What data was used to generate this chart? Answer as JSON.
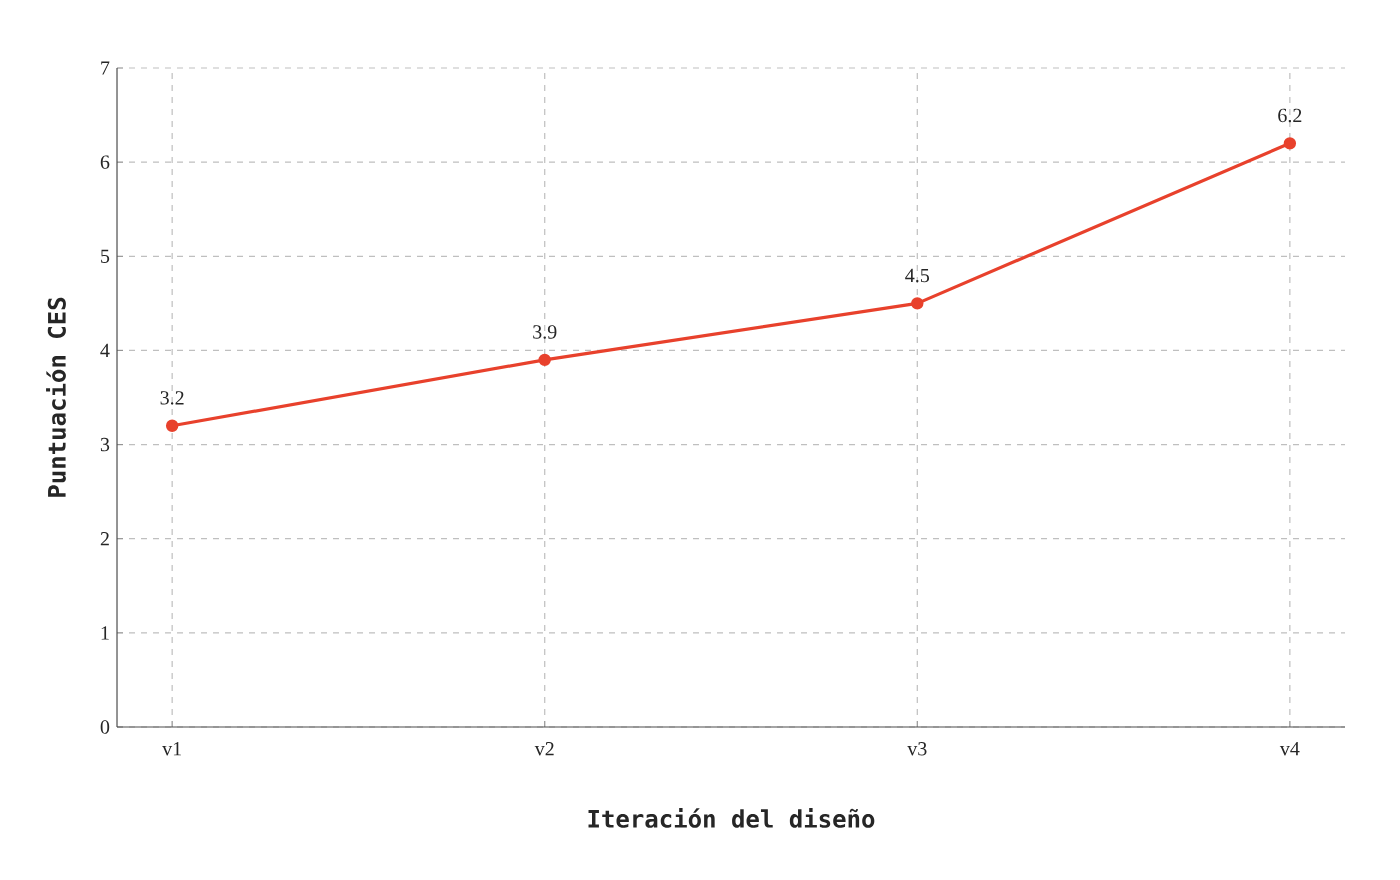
{
  "chart_data": {
    "type": "line",
    "xlabel": "Iteración del diseño",
    "ylabel": "Puntuación CES",
    "categories": [
      "v1",
      "v2",
      "v3",
      "v4"
    ],
    "series": [
      {
        "color": "#e8412c",
        "values": [
          3.2,
          3.9,
          4.5,
          6.2
        ]
      }
    ],
    "ylim": [
      0,
      7
    ],
    "yticks": [
      0,
      1,
      2,
      3,
      4,
      5,
      6,
      7
    ],
    "grid": true,
    "marker": "circle",
    "line_style": "solid",
    "data_labels": true
  }
}
